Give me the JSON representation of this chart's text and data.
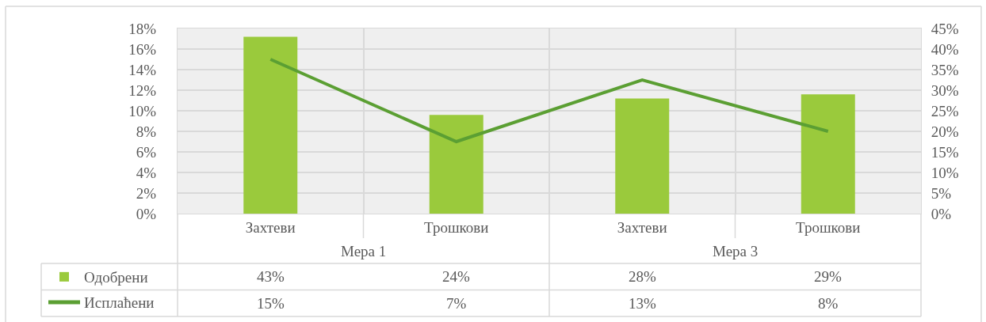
{
  "chart_data": {
    "type": "bar",
    "categories": [
      "Захтеви",
      "Трошкови",
      "Захтеви",
      "Трошкови"
    ],
    "annotations": [
      "Мера 1",
      "Мера 3"
    ],
    "series": [
      {
        "name": "Одобрени",
        "axis": "y2",
        "color": "#9aca3c",
        "values": [
          43,
          24,
          28,
          29
        ],
        "value_labels": [
          "43%",
          "24%",
          "28%",
          "29%"
        ]
      },
      {
        "name": "Исплаћени",
        "type": "line",
        "color": "#5b9f33",
        "values": [
          15,
          7,
          13,
          8
        ],
        "value_labels": [
          "15%",
          "7%",
          "13%",
          "8%"
        ]
      }
    ],
    "ylim": [
      0,
      18
    ],
    "yticks": [
      {
        "value": 0,
        "label": "0%"
      },
      {
        "value": 2,
        "label": "2%"
      },
      {
        "value": 4,
        "label": "4%"
      },
      {
        "value": 6,
        "label": "6%"
      },
      {
        "value": 8,
        "label": "8%"
      },
      {
        "value": 10,
        "label": "10%"
      },
      {
        "value": 12,
        "label": "12%"
      },
      {
        "value": 14,
        "label": "14%"
      },
      {
        "value": 16,
        "label": "16%"
      },
      {
        "value": 18,
        "label": "18%"
      }
    ],
    "y2lim": [
      0,
      45
    ],
    "y2ticks": [
      {
        "value": 0,
        "label": "0%"
      },
      {
        "value": 5,
        "label": "5%"
      },
      {
        "value": 10,
        "label": "10%"
      },
      {
        "value": 15,
        "label": "15%"
      },
      {
        "value": 20,
        "label": "20%"
      },
      {
        "value": 25,
        "label": "25%"
      },
      {
        "value": 30,
        "label": "30%"
      },
      {
        "value": 35,
        "label": "35%"
      },
      {
        "value": 40,
        "label": "40%"
      },
      {
        "value": 45,
        "label": "45%"
      }
    ],
    "grid": true,
    "legend": "bottom left"
  }
}
